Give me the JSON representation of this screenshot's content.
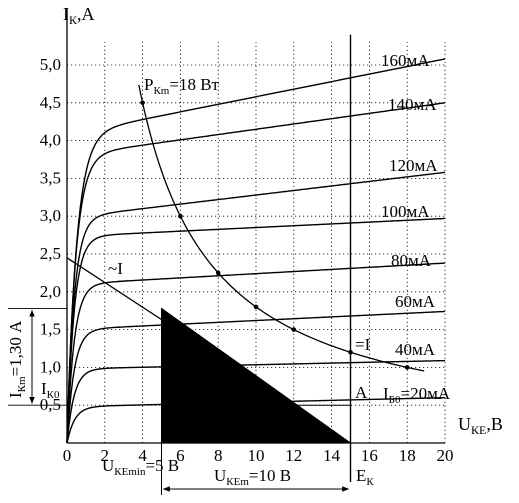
{
  "chart_data": {
    "type": "line",
    "xlabel": "U",
    "xlabel_sub": "КЕ",
    "xlabel_unit": ",В",
    "ylabel": "I",
    "ylabel_sub": "К",
    "ylabel_unit": ",А",
    "xlim": [
      0,
      20
    ],
    "ylim": [
      0,
      5.4
    ],
    "x_ticks": [
      0,
      2,
      4,
      6,
      8,
      10,
      12,
      14,
      16,
      18,
      20
    ],
    "y_ticks": [
      0.5,
      1.0,
      1.5,
      2.0,
      2.5,
      3.0,
      3.5,
      4.0,
      4.5,
      5.0
    ],
    "y_tick_labels": [
      "0,5",
      "1,0",
      "1,5",
      "2,0",
      "2,5",
      "3,0",
      "3,5",
      "4,0",
      "4,5",
      "5,0"
    ],
    "series": [
      {
        "name": "I_Б0=20мА",
        "knee": 1.6,
        "sat": 0.48,
        "slope": 0.006,
        "label_text": "I",
        "label_sub": "Б0",
        "label_rest": "=20мА"
      },
      {
        "name": "40мА",
        "knee": 1.5,
        "sat": 0.98,
        "slope": 0.0055,
        "label_text": "40мА"
      },
      {
        "name": "60мА",
        "knee": 1.5,
        "sat": 1.5,
        "slope": 0.012,
        "label_text": "60мА"
      },
      {
        "name": "80мА",
        "knee": 1.5,
        "sat": 2.1,
        "slope": 0.014,
        "label_text": "80мА"
      },
      {
        "name": "100мА",
        "knee": 1.5,
        "sat": 2.73,
        "slope": 0.012,
        "label_text": "100мА"
      },
      {
        "name": "120мА",
        "knee": 1.5,
        "sat": 2.98,
        "slope": 0.03,
        "label_text": "120мА"
      },
      {
        "name": "140мА",
        "knee": 1.8,
        "sat": 3.8,
        "slope": 0.035,
        "label_text": "140мА"
      },
      {
        "name": "160мА",
        "knee": 2.0,
        "sat": 4.08,
        "slope": 0.05,
        "label_text": "160мА"
      }
    ],
    "power_hyperbola": {
      "label_text": "P",
      "label_sub": "Кm",
      "label_rest": "=18 Вт",
      "power": 18,
      "points": [
        [
          4,
          4.5
        ],
        [
          6,
          3.0
        ],
        [
          8,
          2.25
        ],
        [
          10,
          1.8
        ],
        [
          12,
          1.5
        ],
        [
          15,
          1.2
        ],
        [
          18,
          1.0
        ]
      ]
    },
    "load_line": {
      "from": [
        0,
        2.45
      ],
      "to": [
        15,
        0
      ]
    },
    "triangle": {
      "vertices": [
        [
          5,
          1.78
        ],
        [
          5,
          0
        ],
        [
          15,
          0
        ]
      ]
    },
    "vertical_ek": {
      "x": 15
    },
    "annotations": {
      "sim_left": "~I",
      "sim_right": "=I",
      "point_a": "A",
      "ik0_main": "I",
      "ik0_sub": "К0",
      "ikm_main": "I",
      "ikm_sub": "Кm",
      "ikm_rest": "=1,30 А",
      "ukemin_main": "U",
      "ukemin_sub": "КЕmin",
      "ukemin_rest": "=5 В",
      "ukem_main": "U",
      "ukem_sub": "КЕm",
      "ukem_rest": "=10 В",
      "ek_main": "E",
      "ek_sub": "К"
    }
  }
}
